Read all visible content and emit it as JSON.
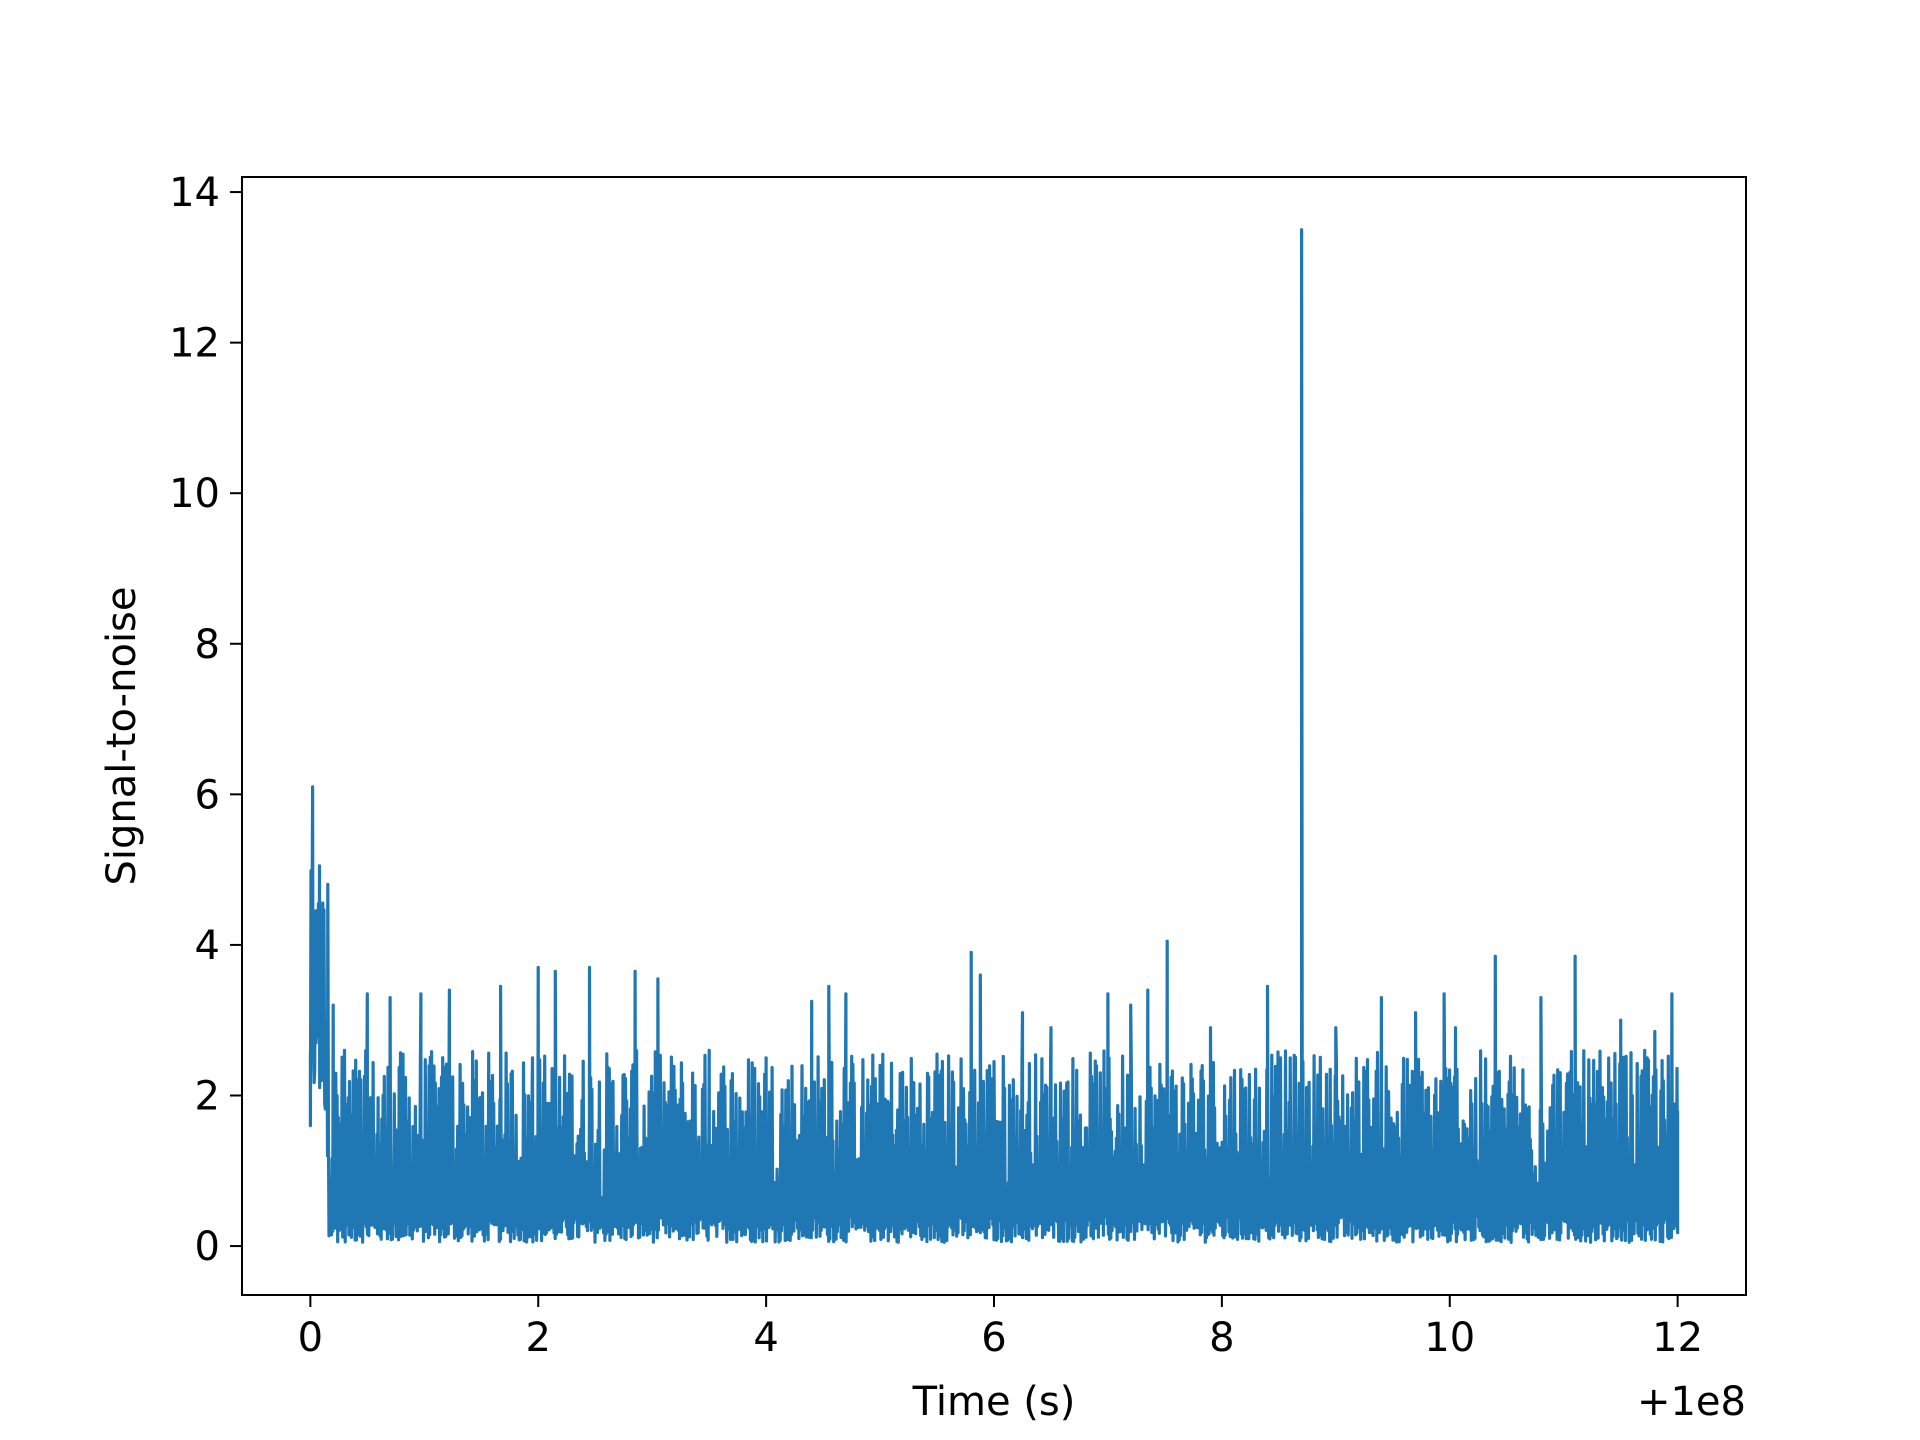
{
  "chart_data": {
    "type": "line",
    "title": "",
    "xlabel": "Time (s)",
    "ylabel": "Signal-to-noise",
    "x_offset_label": "+1e8",
    "xlim": [
      -0.6,
      12.6
    ],
    "ylim": [
      -0.65,
      14.2
    ],
    "xticks": [
      0,
      2,
      4,
      6,
      8,
      10,
      12
    ],
    "xtick_labels": [
      "0",
      "2",
      "4",
      "6",
      "8",
      "10",
      "12"
    ],
    "yticks": [
      0,
      2,
      4,
      6,
      8,
      10,
      12,
      14
    ],
    "ytick_labels": [
      "0",
      "2",
      "4",
      "6",
      "8",
      "10",
      "12",
      "14"
    ],
    "grid": false,
    "line_color": "#1f77b4",
    "series": [
      {
        "x_range": [
          0,
          12
        ],
        "description_points": [
          [
            0.0,
            1.6
          ],
          [
            0.01,
            4.9
          ],
          [
            0.02,
            6.1
          ],
          [
            0.05,
            2.7
          ],
          [
            0.08,
            5.05
          ],
          [
            0.1,
            2.2
          ],
          [
            0.12,
            4.3
          ],
          [
            0.15,
            1.2
          ],
          [
            0.2,
            3.2
          ],
          [
            0.3,
            2.6
          ],
          [
            0.5,
            3.35
          ],
          [
            0.7,
            3.3
          ],
          [
            0.97,
            3.35
          ],
          [
            1.22,
            3.4
          ],
          [
            1.67,
            3.45
          ],
          [
            1.95,
            2.5
          ],
          [
            2.0,
            3.7
          ],
          [
            2.15,
            3.65
          ],
          [
            2.45,
            3.7
          ],
          [
            2.85,
            3.65
          ],
          [
            3.05,
            3.55
          ],
          [
            3.5,
            2.6
          ],
          [
            4.0,
            2.5
          ],
          [
            4.4,
            3.25
          ],
          [
            4.55,
            3.45
          ],
          [
            4.7,
            3.35
          ],
          [
            5.0,
            2.4
          ],
          [
            5.5,
            2.55
          ],
          [
            5.8,
            3.9
          ],
          [
            5.88,
            3.6
          ],
          [
            6.0,
            2.45
          ],
          [
            6.25,
            3.1
          ],
          [
            6.5,
            2.9
          ],
          [
            7.0,
            3.35
          ],
          [
            7.2,
            3.2
          ],
          [
            7.35,
            3.4
          ],
          [
            7.52,
            4.05
          ],
          [
            7.9,
            2.9
          ],
          [
            8.4,
            3.45
          ],
          [
            8.6,
            2.5
          ],
          [
            8.7,
            13.5
          ],
          [
            8.72,
            0.3
          ],
          [
            9.0,
            2.9
          ],
          [
            9.4,
            3.3
          ],
          [
            9.7,
            3.1
          ],
          [
            9.95,
            3.35
          ],
          [
            10.05,
            2.9
          ],
          [
            10.4,
            3.85
          ],
          [
            10.8,
            3.3
          ],
          [
            11.1,
            3.85
          ],
          [
            11.5,
            3.0
          ],
          [
            11.8,
            2.85
          ],
          [
            11.95,
            3.35
          ],
          [
            12.0,
            1.8
          ]
        ],
        "noise_floor": [
          0.05,
          0.4
        ],
        "noise_typical_peak": [
          1.8,
          2.6
        ]
      }
    ]
  }
}
